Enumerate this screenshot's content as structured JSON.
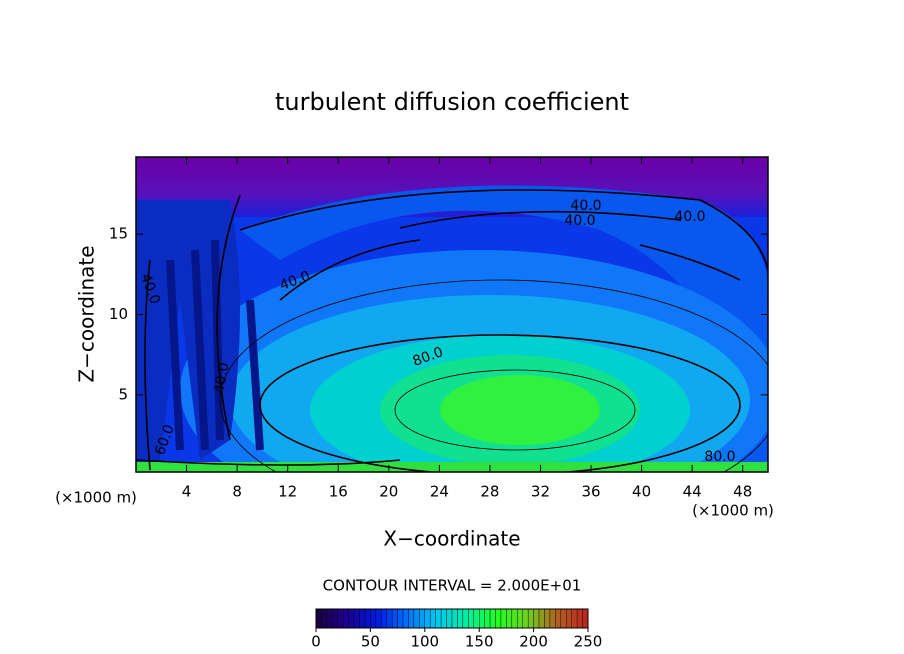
{
  "chart_data": {
    "type": "contour",
    "title": "turbulent diffusion coefficient",
    "xlabel": "X−coordinate",
    "ylabel": "Z−coordinate",
    "x_unit": "(×1000 m)",
    "xlim": [
      0,
      50
    ],
    "xticks": [
      4,
      8,
      12,
      16,
      20,
      24,
      28,
      32,
      36,
      40,
      44,
      48
    ],
    "ylim": [
      0.2,
      19.8
    ],
    "yticks": [
      5,
      10,
      15
    ],
    "contour_interval": "CONTOUR INTERVAL = 2.000E+01",
    "contour_labels": [
      "40.0",
      "40.0",
      "40.0",
      "40.0",
      "40.0",
      "40.0",
      "80.0",
      "80.0",
      "60.0"
    ],
    "colorbar": {
      "lim": [
        0,
        250
      ],
      "ticks": [
        0,
        50,
        100,
        150,
        200,
        250
      ],
      "colors": [
        "#1a0040",
        "#1c0090",
        "#0018e0",
        "#0070ff",
        "#00c8f0",
        "#00f0a0",
        "#20ff20",
        "#70d020",
        "#b06020",
        "#c02020"
      ]
    }
  }
}
